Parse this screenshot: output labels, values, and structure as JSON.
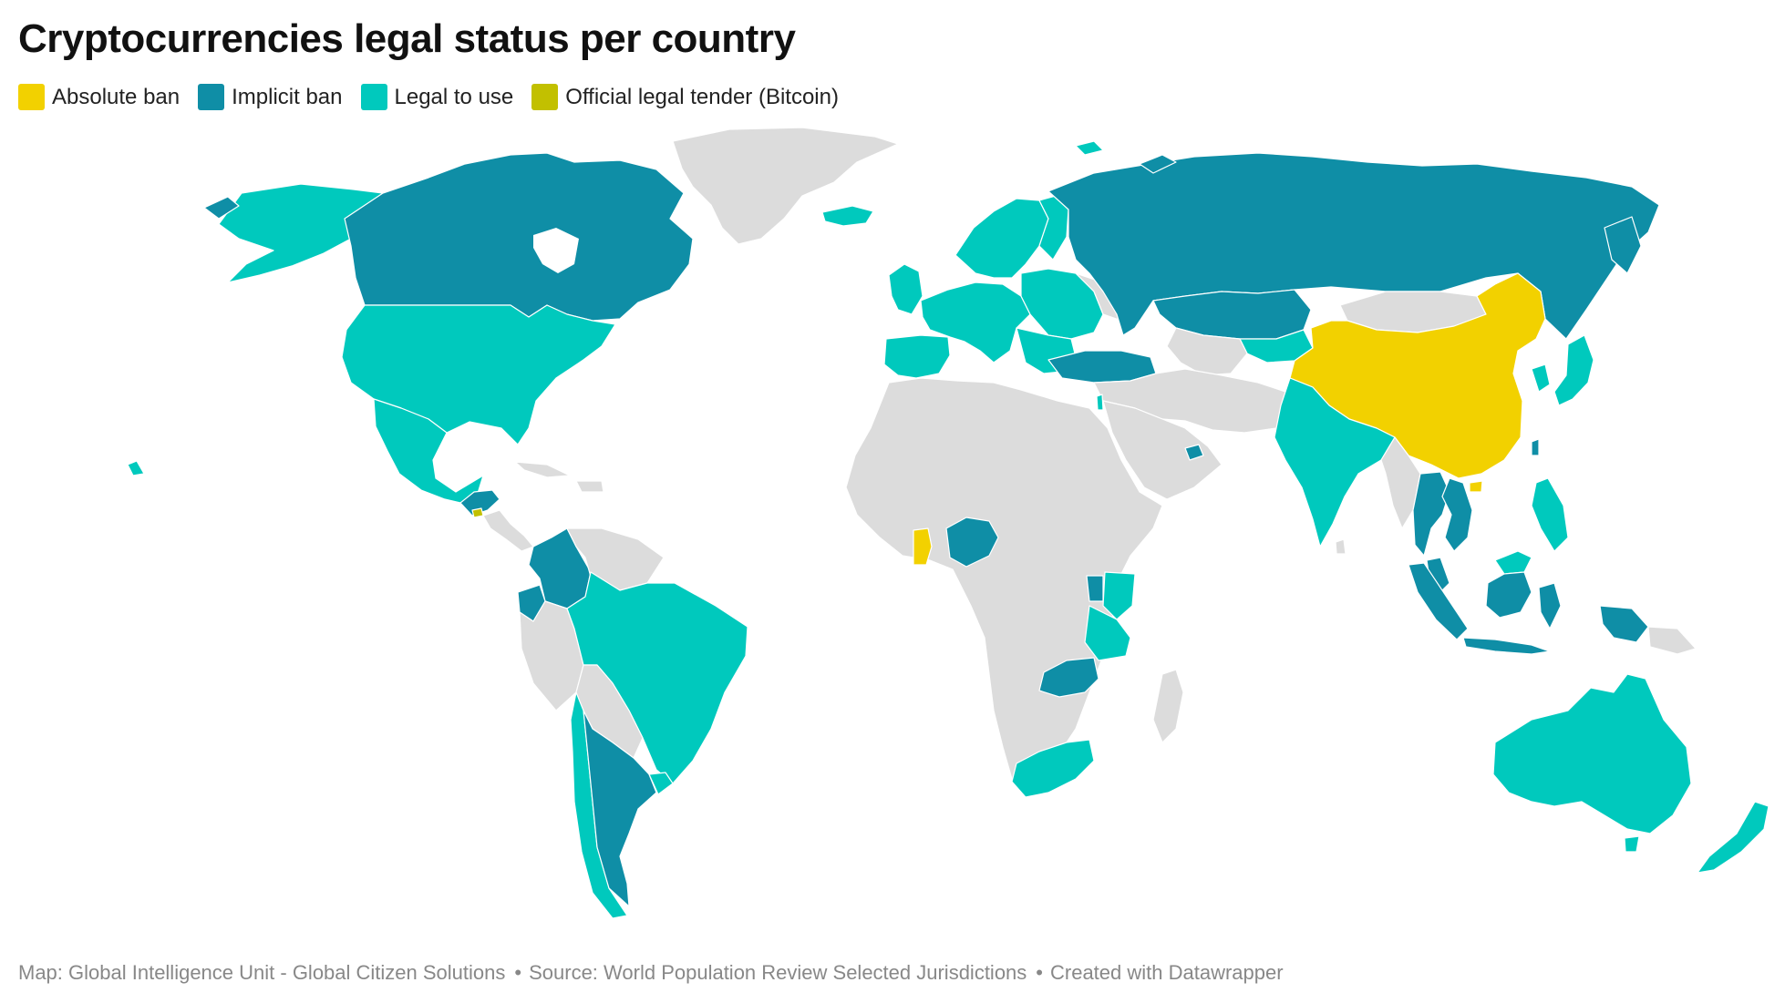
{
  "title": "Cryptocurrencies legal status per country",
  "legend": [
    {
      "label": "Absolute ban",
      "color": "#f2d100"
    },
    {
      "label": "Implicit ban",
      "color": "#0f8ea6"
    },
    {
      "label": "Legal to use",
      "color": "#00c9bd"
    },
    {
      "label": "Official legal tender (Bitcoin)",
      "color": "#c2c000"
    }
  ],
  "colors": {
    "absolute_ban": "#f2d100",
    "implicit_ban": "#0f8ea6",
    "legal_to_use": "#00c9bd",
    "legal_tender": "#c2c000",
    "no_data": "#dcdcdc"
  },
  "footer": {
    "map_credit": "Map: Global Intelligence Unit - Global Citizen Solutions",
    "source": "Source: World Population Review Selected Jurisdictions",
    "created": "Created with Datawrapper",
    "separator": "•"
  }
}
